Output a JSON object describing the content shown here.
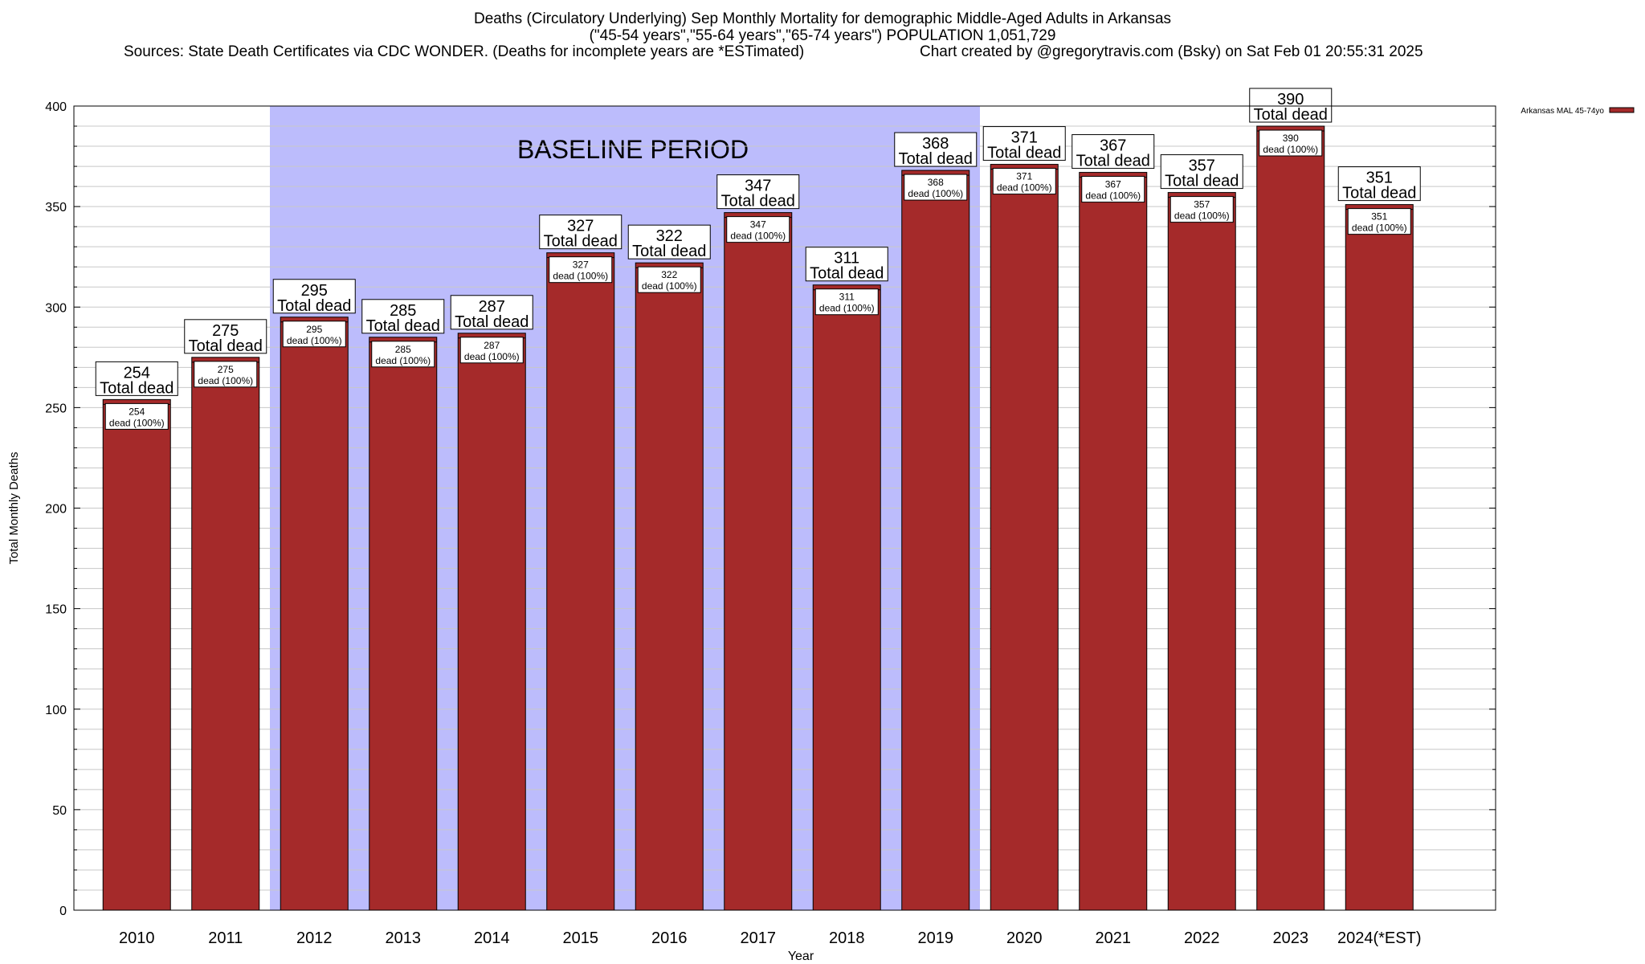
{
  "header": {
    "title_line1": "Deaths (Circulatory Underlying) Sep Monthly Mortality for demographic Middle-Aged Adults in Arkansas",
    "title_line2": "(\"45-54 years\",\"55-64 years\",\"65-74 years\") POPULATION 1,051,729",
    "sources": "Sources: State Death Certificates via CDC WONDER. (Deaths for incomplete years are *ESTimated)",
    "credit": "Chart created by @gregorytravis.com (Bsky) on Sat Feb 01 20:55:31 2025"
  },
  "chart_data": {
    "type": "bar",
    "xlabel": "Year",
    "ylabel": "Total Monthly Deaths",
    "ylim": [
      0,
      400
    ],
    "yticks": [
      0,
      50,
      100,
      150,
      200,
      250,
      300,
      350,
      400
    ],
    "grid": true,
    "legend": {
      "placement": "top-right",
      "entry": "Arkansas MAL 45-74yo"
    },
    "categories": [
      "2010",
      "2011",
      "2012",
      "2013",
      "2014",
      "2015",
      "2016",
      "2017",
      "2018",
      "2019",
      "2020",
      "2021",
      "2022",
      "2023",
      "2024(*EST)"
    ],
    "series": [
      {
        "name": "Arkansas MAL 45-74yo",
        "values": [
          254,
          275,
          295,
          285,
          287,
          327,
          322,
          347,
          311,
          368,
          371,
          367,
          357,
          390,
          351
        ]
      }
    ],
    "total_label": "Total dead",
    "segment_label": "dead (100%)",
    "baseline": {
      "label": "BASELINE PERIOD",
      "from": "2012",
      "to": "2019"
    },
    "colors": {
      "bar": "#a52a2a",
      "baseline": "#bcbcfc",
      "grid": "#c8c8c8"
    }
  }
}
